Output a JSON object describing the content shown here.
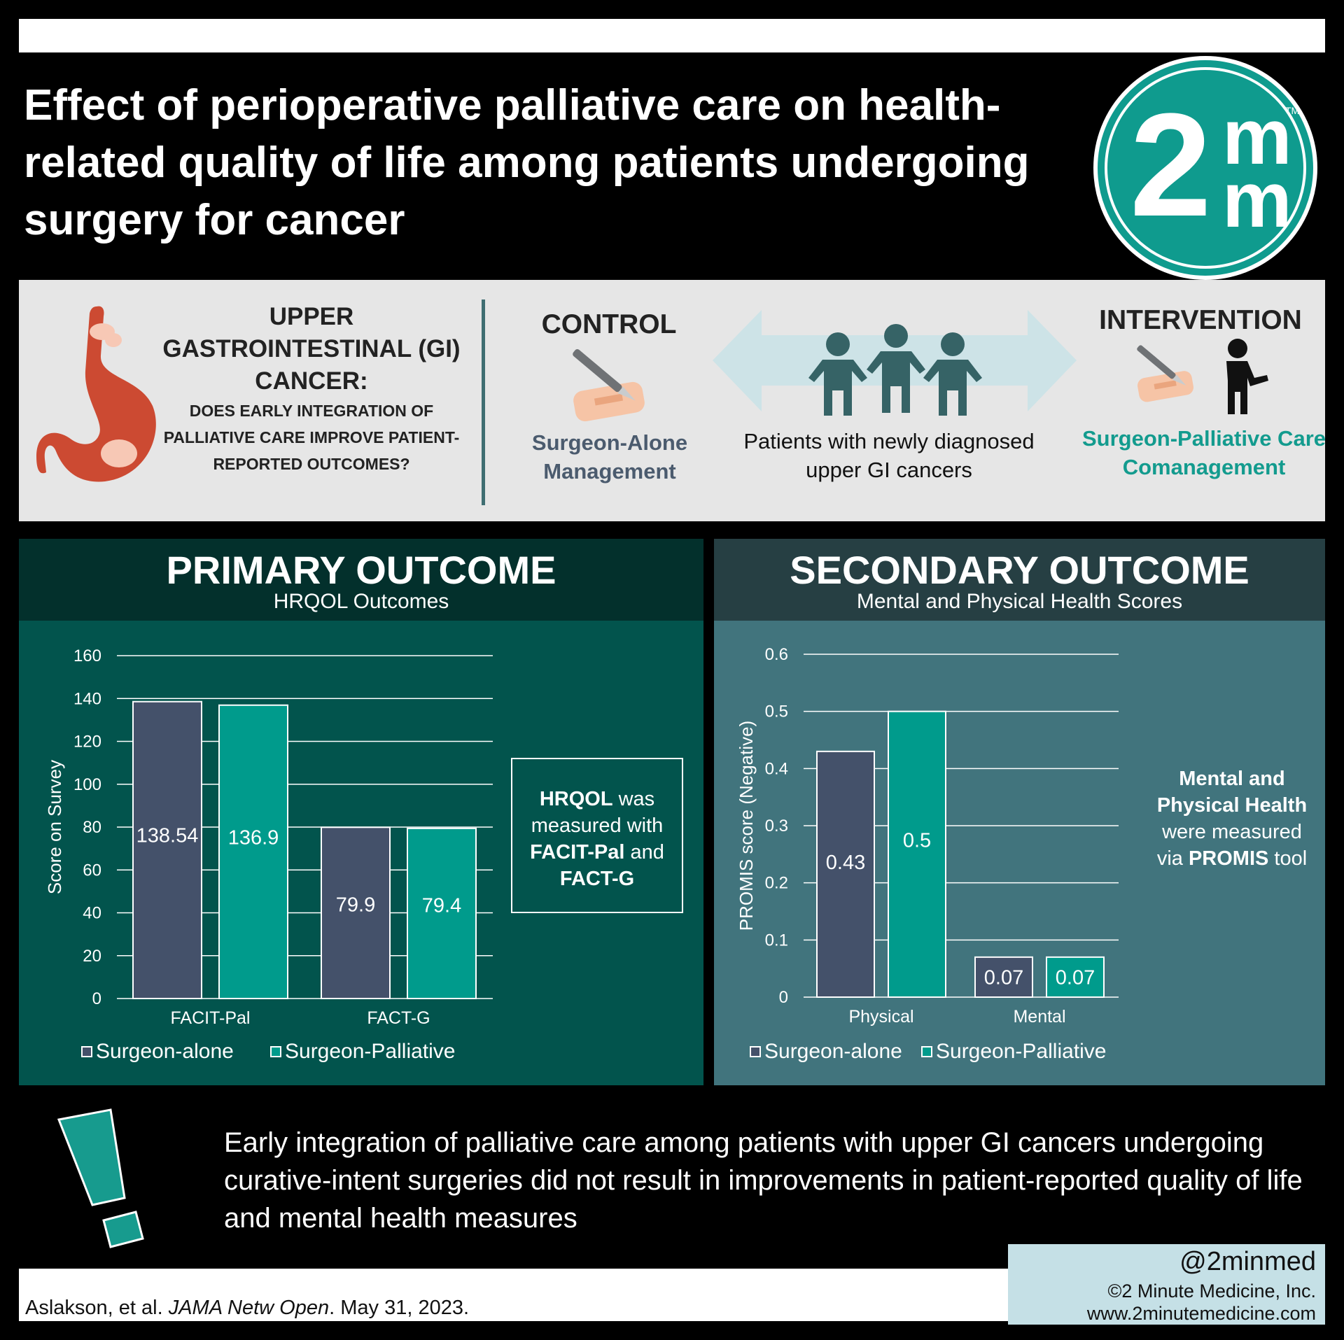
{
  "header": {
    "title": "Effect of perioperative palliative care on health-related quality of life among patients undergoing surgery for cancer",
    "logo_text": "2",
    "logo_m": "m",
    "logo_tm": "TM"
  },
  "study": {
    "question_title": "UPPER GASTROINTESTINAL (GI) CANCER:",
    "question_sub": "DOES EARLY INTEGRATION OF PALLIATIVE CARE IMPROVE PATIENT-REPORTED OUTCOMES?",
    "control_heading": "CONTROL",
    "control_label": "Surgeon-Alone Management",
    "intervention_heading": "INTERVENTION",
    "intervention_label": "Surgeon-Palliative Care Comanagement",
    "population": "Patients with newly diagnosed upper GI cancers"
  },
  "primary": {
    "heading": "PRIMARY OUTCOME",
    "subheading": "HRQOL Outcomes",
    "note": [
      "HRQOL",
      " was measured with ",
      "FACIT-Pal",
      " and ",
      "FACT-G"
    ]
  },
  "secondary": {
    "heading": "SECONDARY OUTCOME",
    "subheading": "Mental and Physical Health Scores",
    "note": [
      "Mental and Physical Health",
      " were measured via ",
      "PROMIS",
      " tool"
    ]
  },
  "chart_data": [
    {
      "type": "bar",
      "ylabel": "Score on Survey",
      "categories": [
        "FACIT-Pal",
        "FACT-G"
      ],
      "ylim": [
        0,
        160
      ],
      "yticks": [
        0,
        20,
        40,
        60,
        80,
        100,
        120,
        140,
        160
      ],
      "series": [
        {
          "name": "Surgeon-alone",
          "values": [
            138.54,
            79.9
          ],
          "labels": [
            "138.54",
            "79.9"
          ],
          "color": "#44516a"
        },
        {
          "name": "Surgeon-Palliative",
          "values": [
            136.9,
            79.4
          ],
          "labels": [
            "136.9",
            "79.4"
          ],
          "color": "#009b8c"
        }
      ],
      "grid": true,
      "legend": "bottom"
    },
    {
      "type": "bar",
      "ylabel": "PROMIS score  (Negative)",
      "categories": [
        "Physical",
        "Mental"
      ],
      "ylim": [
        0,
        0.6
      ],
      "yticks": [
        0,
        0.1,
        0.2,
        0.3,
        0.4,
        0.5,
        0.6
      ],
      "series": [
        {
          "name": "Surgeon-alone",
          "values": [
            0.43,
            0.07
          ],
          "labels": [
            "0.43",
            "0.07"
          ],
          "color": "#44516a"
        },
        {
          "name": "Surgeon-Palliative",
          "values": [
            0.5,
            0.07
          ],
          "labels": [
            "0.5",
            "0.07"
          ],
          "color": "#009b8c"
        }
      ],
      "grid": true,
      "legend": "bottom"
    }
  ],
  "conclusion": "Early integration of palliative care among patients with upper GI cancers undergoing curative-intent surgeries did not result in improvements in patient-reported quality of life and mental health measures",
  "footer": {
    "citation_authors": "Aslakson, et al. ",
    "citation_journal": "JAMA Netw Open",
    "citation_date": ". May 31, 2023.",
    "handle": "@2minmed",
    "company": "©2 Minute Medicine, Inc.",
    "url": "www.2minutemedicine.com"
  },
  "colors": {
    "surgeon_alone": "#44516a",
    "surgeon_palliative": "#009b8c",
    "logo": "#0f9b8e"
  }
}
